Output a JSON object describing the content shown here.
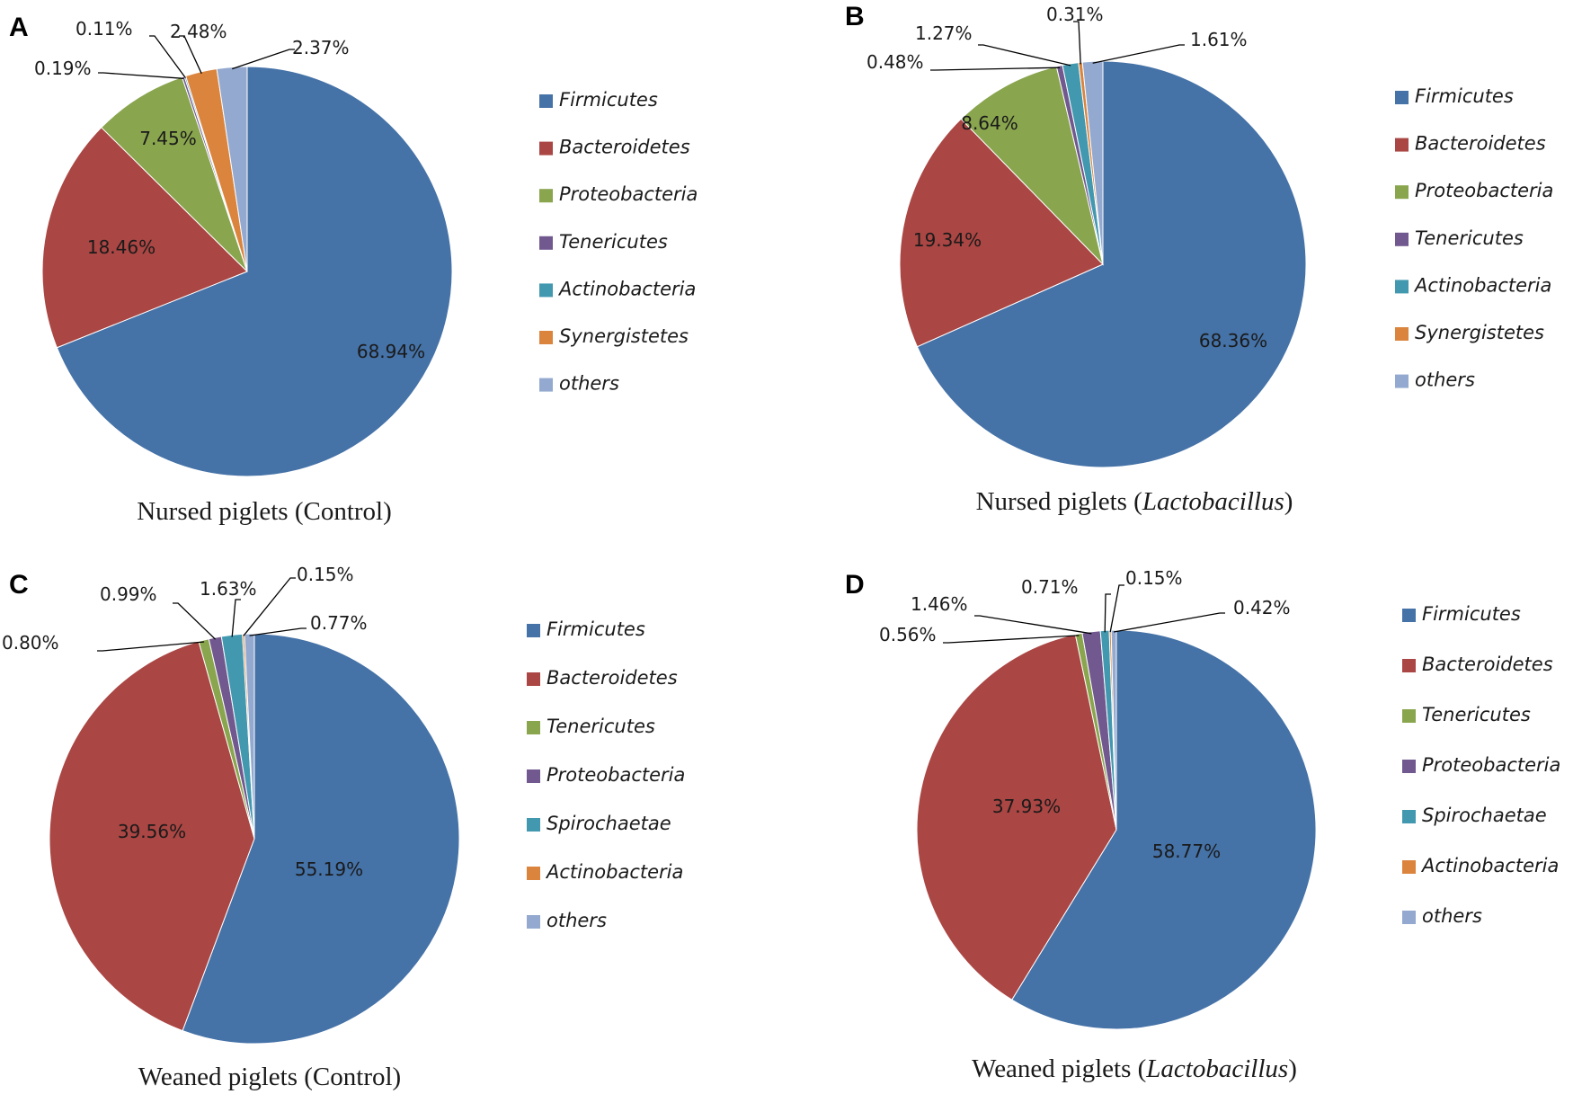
{
  "chart_data": [
    {
      "type": "pie",
      "panel": "A",
      "title": "Nursed piglets (Control)",
      "title_plain": "Nursed piglets (Control)",
      "title_italic": "",
      "title_suffix": "",
      "slices": [
        {
          "name": "Firmicutes",
          "value": 68.94,
          "label": "68.94%",
          "color": "#4572A7"
        },
        {
          "name": "Bacteroidetes",
          "value": 18.46,
          "label": "18.46%",
          "color": "#AA4643"
        },
        {
          "name": "Proteobacteria",
          "value": 7.45,
          "label": "7.45%",
          "color": "#89A54E"
        },
        {
          "name": "Tenericutes",
          "value": 0.19,
          "label": "0.19%",
          "color": "#71588F"
        },
        {
          "name": "Actinobacteria",
          "value": 0.11,
          "label": "0.11%",
          "color": "#4198AF"
        },
        {
          "name": "Synergistetes",
          "value": 2.48,
          "label": "2.48%",
          "color": "#DB843D"
        },
        {
          "name": "others",
          "value": 2.37,
          "label": "2.37%",
          "color": "#93A9CF"
        }
      ],
      "legend": [
        "Firmicutes",
        "Bacteroidetes",
        "Proteobacteria",
        "Tenericutes",
        "Actinobacteria",
        "Synergistetes",
        "others"
      ]
    },
    {
      "type": "pie",
      "panel": "B",
      "title": "Nursed piglets (Lactobacillus)",
      "title_plain": "Nursed piglets (",
      "title_italic": "Lactobacillus",
      "title_suffix": ")",
      "slices": [
        {
          "name": "Firmicutes",
          "value": 68.36,
          "label": "68.36%",
          "color": "#4572A7"
        },
        {
          "name": "Bacteroidetes",
          "value": 19.34,
          "label": "19.34%",
          "color": "#AA4643"
        },
        {
          "name": "Proteobacteria",
          "value": 8.64,
          "label": "8.64%",
          "color": "#89A54E"
        },
        {
          "name": "Tenericutes",
          "value": 0.48,
          "label": "0.48%",
          "color": "#71588F"
        },
        {
          "name": "Actinobacteria",
          "value": 1.27,
          "label": "1.27%",
          "color": "#4198AF"
        },
        {
          "name": "Synergistetes",
          "value": 0.31,
          "label": "0.31%",
          "color": "#DB843D"
        },
        {
          "name": "others",
          "value": 1.61,
          "label": "1.61%",
          "color": "#93A9CF"
        }
      ],
      "legend": [
        "Firmicutes",
        "Bacteroidetes",
        "Proteobacteria",
        "Tenericutes",
        "Actinobacteria",
        "Synergistetes",
        "others"
      ]
    },
    {
      "type": "pie",
      "panel": "C",
      "title": "Weaned piglets (Control)",
      "title_plain": "Weaned piglets (Control)",
      "title_italic": "",
      "title_suffix": "",
      "slices": [
        {
          "name": "Firmicutes",
          "value": 55.19,
          "label": "55.19%",
          "color": "#4572A7"
        },
        {
          "name": "Bacteroidetes",
          "value": 39.56,
          "label": "39.56%",
          "color": "#AA4643"
        },
        {
          "name": "Tenericutes",
          "value": 0.8,
          "label": "0.80%",
          "color": "#89A54E"
        },
        {
          "name": "Proteobacteria",
          "value": 0.99,
          "label": "0.99%",
          "color": "#71588F"
        },
        {
          "name": "Spirochaetae",
          "value": 1.63,
          "label": "1.63%",
          "color": "#4198AF"
        },
        {
          "name": "Actinobacteria",
          "value": 0.15,
          "label": "0.15%",
          "color": "#DB843D"
        },
        {
          "name": "others",
          "value": 0.77,
          "label": "0.77%",
          "color": "#93A9CF"
        }
      ],
      "legend": [
        "Firmicutes",
        "Bacteroidetes",
        "Tenericutes",
        "Proteobacteria",
        "Spirochaetae",
        "Actinobacteria",
        "others"
      ]
    },
    {
      "type": "pie",
      "panel": "D",
      "title": "Weaned piglets (Lactobacillus)",
      "title_plain": "Weaned piglets (",
      "title_italic": "Lactobacillus",
      "title_suffix": ")",
      "slices": [
        {
          "name": "Firmicutes",
          "value": 58.77,
          "label": "58.77%",
          "color": "#4572A7"
        },
        {
          "name": "Bacteroidetes",
          "value": 37.93,
          "label": "37.93%",
          "color": "#AA4643"
        },
        {
          "name": "Tenericutes",
          "value": 0.56,
          "label": "0.56%",
          "color": "#89A54E"
        },
        {
          "name": "Proteobacteria",
          "value": 1.46,
          "label": "1.46%",
          "color": "#71588F"
        },
        {
          "name": "Spirochaetae",
          "value": 0.71,
          "label": "0.71%",
          "color": "#4198AF"
        },
        {
          "name": "Actinobacteria",
          "value": 0.15,
          "label": "0.15%",
          "color": "#DB843D"
        },
        {
          "name": "others",
          "value": 0.42,
          "label": "0.42%",
          "color": "#93A9CF"
        }
      ],
      "legend": [
        "Firmicutes",
        "Bacteroidetes",
        "Tenericutes",
        "Proteobacteria",
        "Spirochaetae",
        "Actinobacteria",
        "others"
      ]
    }
  ]
}
